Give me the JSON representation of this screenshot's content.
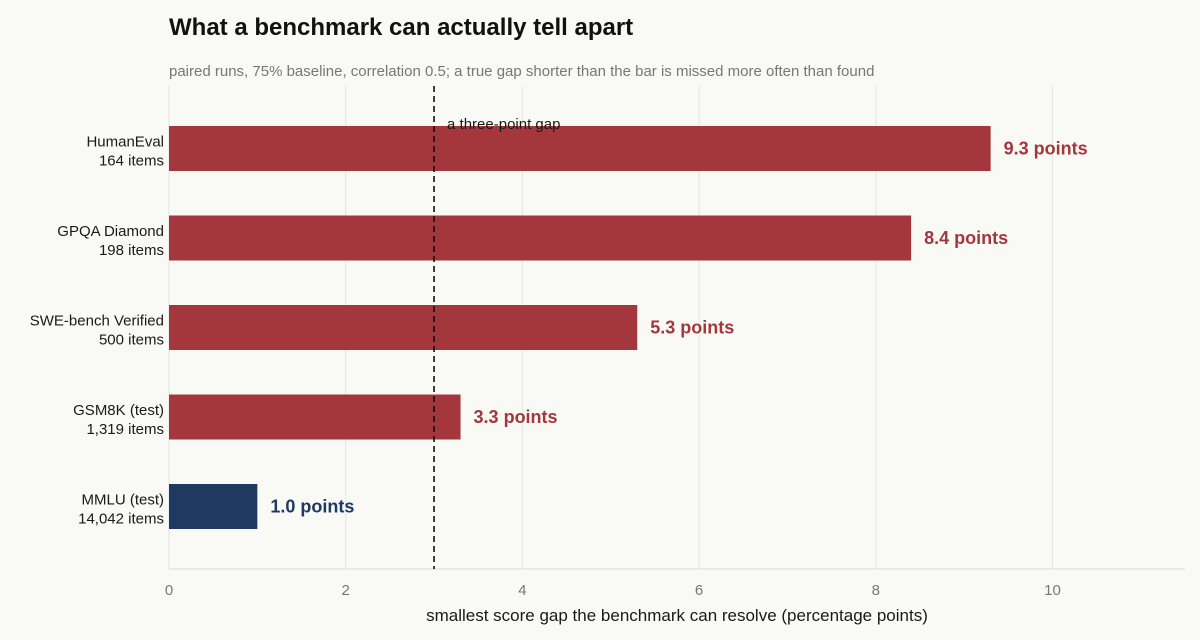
{
  "chart_data": {
    "type": "bar",
    "orientation": "horizontal",
    "title": "What a benchmark can actually tell apart",
    "subtitle": "paired runs, 75% baseline, correlation 0.5; a true gap shorter than the bar is missed more often than found",
    "xlabel": "smallest score gap the benchmark can resolve (percentage points)",
    "ylabel": "",
    "xlim": [
      0,
      11.5
    ],
    "xticks": [
      0,
      2,
      4,
      6,
      8,
      10
    ],
    "grid": true,
    "categories": [
      {
        "name": "HumanEval",
        "detail": "164 items"
      },
      {
        "name": "GPQA Diamond",
        "detail": "198 items"
      },
      {
        "name": "SWE-bench Verified",
        "detail": "500 items"
      },
      {
        "name": "GSM8K (test)",
        "detail": "1,319 items"
      },
      {
        "name": "MMLU (test)",
        "detail": "14,042 items"
      }
    ],
    "values": [
      9.3,
      8.4,
      5.3,
      3.3,
      1.0
    ],
    "value_labels": [
      "9.3 points",
      "8.4 points",
      "5.3 points",
      "3.3 points",
      "1.0 points"
    ],
    "bar_colors": [
      "#a3373c",
      "#a3373c",
      "#a3373c",
      "#a3373c",
      "#1f3a60"
    ],
    "reference_line": {
      "x": 3,
      "label": "a three-point gap",
      "style": "dashed"
    }
  },
  "colors": {
    "background": "#f9f9f6",
    "above_reference": "#a3373c",
    "below_reference": "#1f3a60",
    "grid": "#e4e4df",
    "axis_text": "#777777"
  }
}
